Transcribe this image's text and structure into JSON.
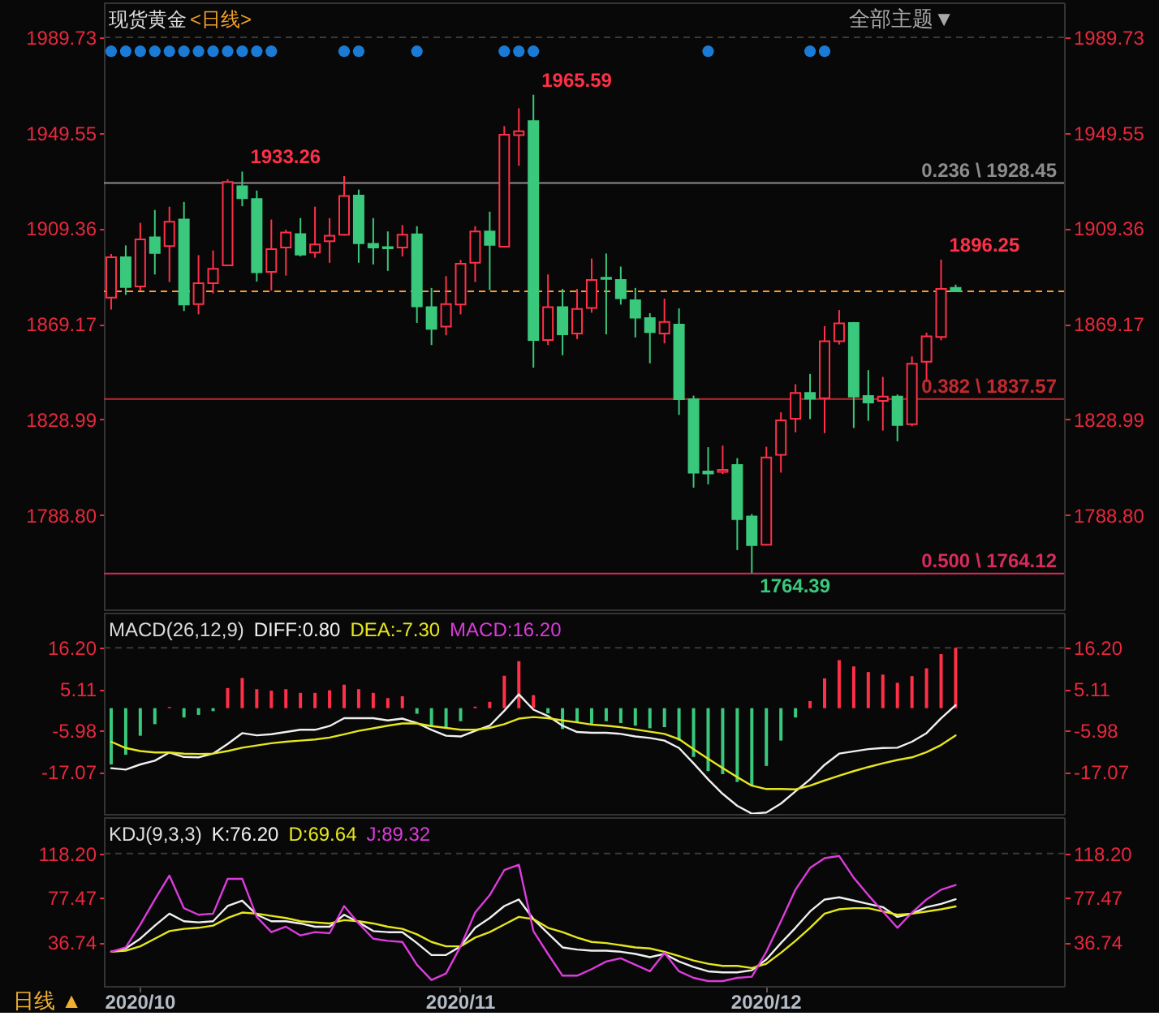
{
  "chart_data": [
    {
      "type": "candlestick",
      "title": "现货黄金",
      "subtitle": "<日线>",
      "categories": [
        null,
        null,
        "2020/10",
        null,
        null,
        null,
        null,
        null,
        null,
        null,
        null,
        null,
        null,
        null,
        null,
        null,
        null,
        null,
        null,
        null,
        null,
        null,
        null,
        null,
        "2020/11",
        null,
        null,
        null,
        null,
        null,
        null,
        null,
        null,
        null,
        null,
        null,
        null,
        null,
        null,
        null,
        null,
        null,
        null,
        null,
        null,
        "2020/12",
        null,
        null,
        null,
        null,
        null,
        null,
        null,
        null,
        null,
        null,
        null,
        null,
        null,
        null,
        null,
        null,
        null,
        null,
        null,
        null
      ],
      "ohlc": [
        [
          1880.2,
          1898.6,
          1875.2,
          1897.2
        ],
        [
          1897.2,
          1902.2,
          1881.4,
          1884.7
        ],
        [
          1884.9,
          1911.7,
          1883.2,
          1904.7
        ],
        [
          1905.6,
          1917.1,
          1890.0,
          1899.0
        ],
        [
          1901.9,
          1918.5,
          1886.8,
          1912.2
        ],
        [
          1913.1,
          1920.5,
          1874.6,
          1877.3
        ],
        [
          1877.5,
          1898.1,
          1873.2,
          1886.3
        ],
        [
          1886.3,
          1900.1,
          1882.0,
          1892.4
        ],
        [
          1893.8,
          1930.0,
          1893.5,
          1928.9
        ],
        [
          1927.1,
          1933.26,
          1918.7,
          1922.1
        ],
        [
          1921.7,
          1925.3,
          1887.0,
          1890.9
        ],
        [
          1891.1,
          1913.1,
          1883.2,
          1900.6
        ],
        [
          1901.3,
          1908.8,
          1889.5,
          1907.6
        ],
        [
          1907.0,
          1913.7,
          1897.6,
          1898.3
        ],
        [
          1899.2,
          1918.5,
          1897.0,
          1902.6
        ],
        [
          1904.0,
          1913.7,
          1894.9,
          1906.3
        ],
        [
          1906.7,
          1931.4,
          1906.3,
          1923.0
        ],
        [
          1923.2,
          1925.7,
          1894.9,
          1903.1
        ],
        [
          1902.9,
          1913.7,
          1894.2,
          1901.3
        ],
        [
          1901.5,
          1908.1,
          1891.5,
          1901.0
        ],
        [
          1901.3,
          1910.8,
          1897.6,
          1906.7
        ],
        [
          1906.9,
          1910.3,
          1869.6,
          1876.6
        ],
        [
          1876.2,
          1884.3,
          1860.3,
          1867.1
        ],
        [
          1868.0,
          1889.3,
          1864.4,
          1877.5
        ],
        [
          1877.3,
          1896.1,
          1873.2,
          1894.5
        ],
        [
          1894.9,
          1910.3,
          1886.8,
          1908.1
        ],
        [
          1908.1,
          1916.4,
          1883.4,
          1902.4
        ],
        [
          1901.7,
          1952.4,
          1901.3,
          1948.8
        ],
        [
          1948.6,
          1959.9,
          1935.7,
          1950.2
        ],
        [
          1954.5,
          1965.59,
          1850.8,
          1862.4
        ],
        [
          1862.4,
          1890.0,
          1860.3,
          1876.2
        ],
        [
          1876.2,
          1883.9,
          1856.0,
          1864.8
        ],
        [
          1865.1,
          1883.9,
          1862.8,
          1875.5
        ],
        [
          1875.9,
          1896.7,
          1873.9,
          1887.7
        ],
        [
          1888.6,
          1898.8,
          1864.8,
          1888.1
        ],
        [
          1887.7,
          1893.3,
          1877.3,
          1880.0
        ],
        [
          1879.1,
          1884.3,
          1863.5,
          1871.8
        ],
        [
          1871.6,
          1873.7,
          1852.6,
          1865.7
        ],
        [
          1865.1,
          1879.8,
          1861.0,
          1870.0
        ],
        [
          1868.9,
          1875.7,
          1830.9,
          1837.5
        ],
        [
          1837.5,
          1839.0,
          1800.3,
          1806.6
        ],
        [
          1807.1,
          1817.3,
          1801.7,
          1806.2
        ],
        [
          1806.9,
          1818.0,
          1806.0,
          1807.8
        ],
        [
          1809.8,
          1812.7,
          1774.0,
          1787.0
        ],
        [
          1788.1,
          1789.2,
          1764.39,
          1776.1
        ],
        [
          1776.3,
          1817.5,
          1775.9,
          1813.0
        ],
        [
          1814.1,
          1832.0,
          1806.6,
          1828.6
        ],
        [
          1829.3,
          1843.8,
          1823.6,
          1840.1
        ],
        [
          1840.1,
          1848.1,
          1829.1,
          1837.7
        ],
        [
          1837.9,
          1868.2,
          1823.2,
          1861.9
        ],
        [
          1861.9,
          1875.0,
          1860.5,
          1869.4
        ],
        [
          1869.6,
          1870.0,
          1825.4,
          1838.6
        ],
        [
          1838.8,
          1849.7,
          1828.4,
          1836.1
        ],
        [
          1836.8,
          1846.9,
          1824.3,
          1838.6
        ],
        [
          1838.6,
          1839.5,
          1819.8,
          1826.6
        ],
        [
          1827.0,
          1855.5,
          1826.1,
          1852.4
        ],
        [
          1853.3,
          1865.5,
          1844.7,
          1863.9
        ],
        [
          1863.7,
          1896.25,
          1862.3,
          1883.9
        ],
        [
          1884.3,
          1885.7,
          1882.9,
          1882.9
        ],
        null,
        null,
        null,
        null,
        null,
        null,
        null
      ],
      "colors": [
        "#ff3048",
        "#3ac97c",
        "#ff3048",
        "#3ac97c",
        "#ff3048",
        "#3ac97c",
        "#ff3048",
        "#ff3048",
        "#ff3048",
        "#3ac97c",
        "#3ac97c",
        "#ff3048",
        "#ff3048",
        "#3ac97c",
        "#ff3048",
        "#ff3048",
        "#ff3048",
        "#3ac97c",
        "#3ac97c",
        "#3ac97c",
        "#ff3048",
        "#3ac97c",
        "#3ac97c",
        "#ff3048",
        "#ff3048",
        "#ff3048",
        "#3ac97c",
        "#ff3048",
        "#ff3048",
        "#3ac97c",
        "#ff3048",
        "#3ac97c",
        "#ff3048",
        "#ff3048",
        "#3ac97c",
        "#3ac97c",
        "#3ac97c",
        "#3ac97c",
        "#ff3048",
        "#3ac97c",
        "#3ac97c",
        "#3ac97c",
        "#ff3048",
        "#3ac97c",
        "#3ac97c",
        "#ff3048",
        "#ff3048",
        "#ff3048",
        "#3ac97c",
        "#ff3048",
        "#ff3048",
        "#3ac97c",
        "#3ac97c",
        "#ff3048",
        "#3ac97c",
        "#ff3048",
        "#ff3048",
        "#ff3048",
        "#3ac97c",
        null,
        null,
        null,
        null,
        null,
        null,
        null
      ],
      "series": [
        {
          "type": "scatter",
          "color": "#1a7bd6",
          "marker": "circle",
          "values": [
            1983.9,
            1983.9,
            1983.9,
            1983.9,
            1983.9,
            1983.9,
            1983.9,
            1983.9,
            1983.9,
            1983.9,
            1983.9,
            1983.9,
            null,
            null,
            null,
            null,
            1983.9,
            1983.9,
            null,
            null,
            null,
            1983.9,
            null,
            null,
            null,
            null,
            null,
            1983.9,
            1983.9,
            1983.9,
            null,
            null,
            null,
            null,
            null,
            null,
            null,
            null,
            null,
            null,
            null,
            1983.9,
            null,
            null,
            null,
            null,
            null,
            null,
            1983.9,
            1983.9,
            null,
            null,
            null,
            null,
            null,
            null,
            null,
            null,
            null,
            null,
            null,
            null,
            null,
            null,
            null,
            null
          ]
        }
      ],
      "ylim": [
        1748.7,
        2004.1
      ],
      "yticks": [
        {
          "value": 1788.8,
          "label": "1788.80"
        },
        1828.99,
        1869.17,
        1909.36,
        1949.55,
        1989.73
      ],
      "y2lim": [
        1748.7,
        2004.1
      ],
      "y2ticks": [
        {
          "value": 1788.8,
          "label": "1788.80"
        },
        1828.99,
        1869.17,
        1909.36,
        1949.55,
        1989.73
      ],
      "ref_lines": [
        {
          "axis": "y",
          "value": 1989.73,
          "color": "#3a3a3a",
          "line_style": "dashed"
        },
        {
          "axis": "y",
          "value": 1928.45,
          "label": "0.236 \\ 1928.45",
          "color": "#8c8c8c"
        },
        {
          "axis": "y",
          "value": 1882.9,
          "color": "#ff9a2e",
          "line_style": "dashed"
        },
        {
          "axis": "y",
          "value": 1837.57,
          "label": "0.382 \\ 1837.57",
          "color": "#c02a30"
        },
        {
          "axis": "y",
          "value": 1764.12,
          "label": "0.500 \\ 1764.12",
          "color": "#d82a5c"
        }
      ],
      "annotations": [
        "1933.26",
        "1965.59",
        "1896.25",
        "1764.39",
        "全部主题▼"
      ],
      "tick_labels": "y"
    },
    {
      "type": "bar",
      "title": "MACD(26,12,9)",
      "categories": [
        null,
        null,
        "2020/10",
        null,
        null,
        null,
        null,
        null,
        null,
        null,
        null,
        null,
        null,
        null,
        null,
        null,
        null,
        null,
        null,
        null,
        null,
        null,
        null,
        null,
        "2020/11",
        null,
        null,
        null,
        null,
        null,
        null,
        null,
        null,
        null,
        null,
        null,
        null,
        null,
        null,
        null,
        null,
        null,
        null,
        null,
        null,
        "2020/12",
        null,
        null,
        null,
        null,
        null,
        null,
        null,
        null,
        null,
        null,
        null,
        null,
        null,
        null,
        null,
        null,
        null,
        null,
        null,
        null
      ],
      "series": [
        {
          "name": "DIFF:0.80",
          "type": "line",
          "color": "#f0f0f0",
          "values": [
            -16.1,
            -16.5,
            -15.1,
            -14.1,
            -11.9,
            -13.1,
            -13.2,
            -12.2,
            -9.6,
            -6.7,
            -7.3,
            -7.0,
            -6.4,
            -5.8,
            -5.8,
            -4.8,
            -2.7,
            -2.7,
            -2.7,
            -3.3,
            -2.8,
            -4.0,
            -5.8,
            -7.4,
            -7.6,
            -6.1,
            -4.7,
            -0.7,
            3.7,
            -0.4,
            -2.1,
            -4.7,
            -6.4,
            -6.6,
            -6.6,
            -6.9,
            -7.6,
            -8.0,
            -8.7,
            -10.7,
            -14.8,
            -19.1,
            -23.0,
            -26.2,
            -28.3,
            -28.0,
            -25.6,
            -22.3,
            -19.1,
            -15.2,
            -12.2,
            -11.6,
            -11.0,
            -10.7,
            -10.6,
            -9.0,
            -6.7,
            -2.7,
            0.8,
            null,
            null,
            null,
            null,
            null,
            null,
            null
          ]
        },
        {
          "name": "DEA:-7.30",
          "type": "line",
          "color": "#e6e61e",
          "values": [
            -9.0,
            -10.7,
            -11.5,
            -11.9,
            -11.9,
            -12.2,
            -12.3,
            -12.2,
            -11.5,
            -10.6,
            -10.0,
            -9.4,
            -9.0,
            -8.7,
            -8.4,
            -7.9,
            -7.0,
            -6.1,
            -5.4,
            -4.7,
            -4.1,
            -4.1,
            -4.8,
            -5.3,
            -5.8,
            -5.8,
            -5.3,
            -4.3,
            -2.8,
            -2.4,
            -2.7,
            -3.3,
            -3.8,
            -4.4,
            -4.7,
            -5.1,
            -5.7,
            -6.3,
            -6.9,
            -8.3,
            -11.0,
            -13.6,
            -16.1,
            -18.5,
            -20.8,
            -21.7,
            -21.7,
            -21.8,
            -20.8,
            -19.4,
            -18.1,
            -16.9,
            -15.8,
            -14.8,
            -13.9,
            -13.2,
            -11.8,
            -9.9,
            -7.3,
            null,
            null,
            null,
            null,
            null,
            null,
            null
          ]
        },
        {
          "name": "MACD:16.20",
          "type": "bar",
          "color": "#d83cd8",
          "values": [
            -15.1,
            -12.5,
            -7.4,
            -4.3,
            0.3,
            -2.5,
            -1.8,
            -0.8,
            5.4,
            8.1,
            5.1,
            4.7,
            5.1,
            4.1,
            4.1,
            4.8,
            6.3,
            5.1,
            4.1,
            2.7,
            3.2,
            -1.5,
            -5.1,
            -5.3,
            -3.5,
            0.4,
            1.7,
            8.7,
            12.6,
            3.5,
            -1.4,
            -5.6,
            -3.8,
            -4.5,
            -3.5,
            -4.0,
            -4.7,
            -5.4,
            -5.1,
            -8.7,
            -13.1,
            -16.9,
            -17.7,
            -19.8,
            -20.8,
            -15.5,
            -8.7,
            -2.5,
            1.9,
            8.0,
            12.9,
            11.2,
            9.7,
            9.0,
            6.8,
            8.6,
            10.7,
            14.5,
            16.2,
            null,
            null,
            null,
            null,
            null,
            null,
            null
          ],
          "colors": [
            "#3ac97c",
            "#3ac97c",
            "#3ac97c",
            "#3ac97c",
            "#ff3048",
            "#3ac97c",
            "#3ac97c",
            "#3ac97c",
            "#ff3048",
            "#ff3048",
            "#ff3048",
            "#ff3048",
            "#ff3048",
            "#ff3048",
            "#ff3048",
            "#ff3048",
            "#ff3048",
            "#ff3048",
            "#ff3048",
            "#ff3048",
            "#ff3048",
            "#3ac97c",
            "#3ac97c",
            "#3ac97c",
            "#3ac97c",
            "#ff3048",
            "#ff3048",
            "#ff3048",
            "#ff3048",
            "#ff3048",
            "#3ac97c",
            "#3ac97c",
            "#3ac97c",
            "#3ac97c",
            "#3ac97c",
            "#3ac97c",
            "#3ac97c",
            "#3ac97c",
            "#3ac97c",
            "#3ac97c",
            "#3ac97c",
            "#3ac97c",
            "#3ac97c",
            "#3ac97c",
            "#3ac97c",
            "#3ac97c",
            "#3ac97c",
            "#3ac97c",
            "#ff3048",
            "#ff3048",
            "#ff3048",
            "#ff3048",
            "#ff3048",
            "#ff3048",
            "#ff3048",
            "#ff3048",
            "#ff3048",
            "#ff3048",
            "#ff3048",
            null,
            null,
            null,
            null,
            null,
            null,
            null
          ]
        }
      ],
      "ylim": [
        -28.6,
        25.4
      ],
      "yticks": [
        -17.07,
        -5.98,
        5.11,
        {
          "value": 16.2,
          "label": "16.20"
        }
      ],
      "y2lim": [
        -28.6,
        25.4
      ],
      "y2ticks": [
        -17.07,
        -5.98,
        5.11,
        {
          "value": 16.2,
          "label": "16.20"
        }
      ],
      "ref_lines": [
        {
          "axis": "y",
          "value": 16.2,
          "color": "#3a3a3a",
          "line_style": "dashed"
        }
      ],
      "legend": "top left",
      "tick_labels": "y"
    },
    {
      "type": "line",
      "title": "KDJ(9,3,3)",
      "categories": [
        null,
        null,
        "2020/10",
        null,
        null,
        null,
        null,
        null,
        null,
        null,
        null,
        null,
        null,
        null,
        null,
        null,
        null,
        null,
        null,
        null,
        null,
        null,
        null,
        null,
        "2020/11",
        null,
        null,
        null,
        null,
        null,
        null,
        null,
        null,
        null,
        null,
        null,
        null,
        null,
        null,
        null,
        null,
        null,
        null,
        null,
        null,
        "2020/12",
        null,
        null,
        null,
        null,
        null,
        null,
        null,
        null,
        null,
        null,
        null,
        null,
        null,
        null,
        null,
        null,
        null,
        null,
        null,
        null
      ],
      "series": [
        {
          "name": "K:76.20",
          "color": "#f0f0f0",
          "values": [
            28,
            31,
            40,
            52,
            63,
            56,
            55,
            56,
            70,
            75,
            62,
            56,
            56,
            54,
            51,
            51,
            62,
            55,
            47,
            46,
            46,
            36,
            25,
            25,
            33,
            50,
            59,
            70,
            76,
            58,
            45,
            32,
            30,
            29,
            29,
            28,
            26,
            23,
            26,
            19,
            14,
            10,
            9,
            9,
            11,
            21,
            36,
            50,
            65,
            76,
            78,
            75,
            72,
            69,
            60,
            63,
            69,
            72,
            76.2,
            null,
            null,
            null,
            null,
            null,
            null,
            null
          ]
        },
        {
          "name": "D:69.64",
          "color": "#e6e61e",
          "values": [
            28,
            29,
            33,
            40,
            47,
            49,
            50,
            52,
            59,
            64,
            63,
            61,
            59,
            56,
            55,
            54,
            57,
            56,
            54,
            51,
            49,
            44,
            37,
            33,
            33,
            41,
            46,
            53,
            60,
            58,
            50,
            46,
            41,
            37,
            36,
            34,
            32,
            31,
            28,
            24,
            20,
            17,
            15,
            15,
            13,
            17,
            27,
            38,
            50,
            63,
            67,
            68,
            68,
            65,
            62,
            63,
            65,
            67,
            69.64,
            null,
            null,
            null,
            null,
            null,
            null,
            null
          ]
        },
        {
          "name": "J:89.32",
          "color": "#dc3cdc",
          "values": [
            28,
            32,
            53,
            76,
            98,
            68,
            62,
            63,
            95,
            95,
            60,
            46,
            51,
            43,
            46,
            45,
            70,
            54,
            40,
            38,
            37,
            16,
            2,
            8,
            33,
            64,
            80,
            103,
            108,
            47,
            26,
            6,
            6,
            12,
            19,
            22,
            16,
            10,
            27,
            10,
            4,
            1,
            1,
            4,
            5,
            28,
            56,
            85,
            105,
            114,
            116,
            96,
            80,
            65,
            50,
            64,
            76,
            85,
            89.32,
            null,
            null,
            null,
            null,
            null,
            null,
            null
          ]
        }
      ],
      "ylim": [
        -4.2,
        150.9
      ],
      "yticks": [
        36.74,
        77.47,
        {
          "value": 118.2,
          "label": "118.20"
        }
      ],
      "y2lim": [
        -4.2,
        150.9
      ],
      "y2ticks": [
        36.74,
        77.47,
        {
          "value": 118.2,
          "label": "118.20"
        }
      ],
      "ref_lines": [
        {
          "axis": "y",
          "value": 118.2,
          "color": "#3a3a3a",
          "line_style": "dashed"
        }
      ],
      "legend": "top left",
      "annotations": [
        "日线 ▲"
      ]
    }
  ]
}
